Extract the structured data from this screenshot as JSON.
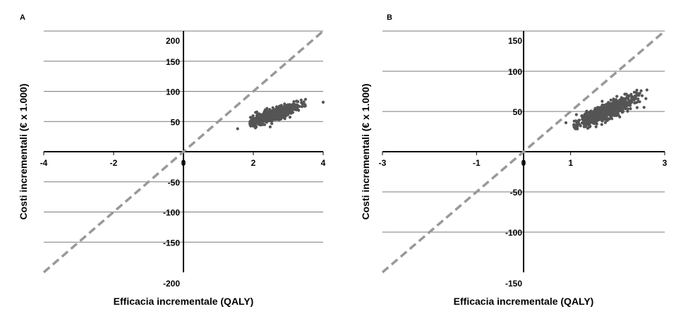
{
  "chart_data": [
    {
      "panel_label": "A",
      "type": "scatter",
      "xlabel": "Efficacia incrementale (QALY)",
      "ylabel": "Costi incrementali (€ x 1.000)",
      "xlim": [
        -4,
        4
      ],
      "ylim": [
        -200,
        200
      ],
      "x_ticks": [
        -4,
        -2,
        0,
        2,
        4
      ],
      "x_tick_labels": [
        "-4",
        "-2",
        "0",
        "2",
        "4"
      ],
      "y_ticks": [
        200,
        150,
        100,
        50,
        -50,
        -100,
        -150,
        -200
      ],
      "y_tick_labels": [
        "200",
        "150",
        "100",
        "50",
        "-50",
        "-100",
        "-150",
        "-200"
      ],
      "gridlines_y": [
        200,
        150,
        100,
        50,
        -50,
        -100,
        -150
      ],
      "threshold_line": {
        "style": "dashed",
        "color": "#999999",
        "points": [
          [
            -4,
            -200
          ],
          [
            4,
            200
          ]
        ]
      },
      "cloud": {
        "center": [
          2.6,
          62
        ],
        "count": 800,
        "spread_x": 0.33,
        "spread_y": 4.6,
        "slope": 20,
        "x_min": 1.9,
        "x_max": 3.5,
        "outliers": [
          [
            1.55,
            38
          ],
          [
            4.0,
            82
          ]
        ]
      },
      "point_color": "#555555"
    },
    {
      "panel_label": "B",
      "type": "scatter",
      "xlabel": "Efficacia incrementale (QALY)",
      "ylabel": "Costi incrementali (€ x 1.000)",
      "xlim": [
        -3,
        3
      ],
      "ylim": [
        -150,
        150
      ],
      "x_ticks": [
        -3,
        -1,
        0,
        1,
        3
      ],
      "x_tick_labels": [
        "-3",
        "-1",
        "0",
        "1",
        "3"
      ],
      "y_ticks": [
        150,
        100,
        50,
        -50,
        -100,
        -150
      ],
      "y_tick_labels": [
        "150",
        "100",
        "50",
        "-50",
        "-100",
        "-150"
      ],
      "gridlines_y": [
        150,
        100,
        50,
        -50,
        -100
      ],
      "threshold_line": {
        "style": "dashed",
        "color": "#999999",
        "points": [
          [
            -3,
            -150
          ],
          [
            3,
            150
          ]
        ]
      },
      "cloud": {
        "center": [
          1.75,
          50
        ],
        "count": 800,
        "spread_x": 0.3,
        "spread_y": 4.8,
        "slope": 26,
        "x_min": 1.05,
        "x_max": 2.65,
        "outliers": [
          [
            0.9,
            36
          ],
          [
            2.6,
            66
          ],
          [
            2.4,
            70
          ]
        ]
      },
      "point_color": "#555555"
    }
  ]
}
